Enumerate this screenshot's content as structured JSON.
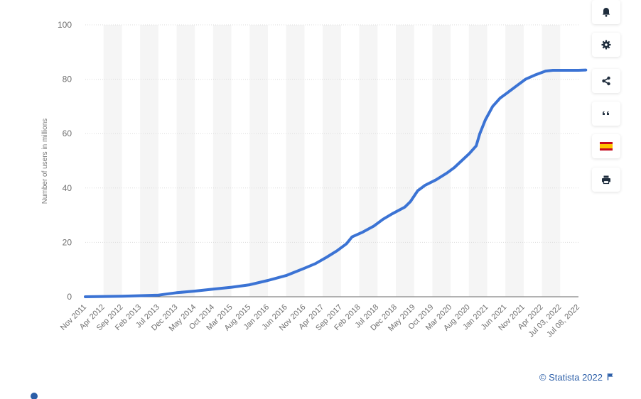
{
  "chart_data": {
    "type": "line",
    "title": "",
    "xlabel": "",
    "ylabel": "Number of users in millions",
    "ylim": [
      0,
      100
    ],
    "yticks": [
      0,
      20,
      40,
      60,
      80,
      100
    ],
    "grid": true,
    "categories": [
      "Nov 2011",
      "Apr 2012",
      "Sep 2012",
      "Feb 2013",
      "Jul 2013",
      "Dec 2013",
      "May 2014",
      "Oct 2014",
      "Mar 2015",
      "Aug 2015",
      "Jan 2016",
      "Jun 2016",
      "Nov 2016",
      "Apr 2017",
      "Sep 2017",
      "Feb 2018",
      "Jul 2018",
      "Dec 2018",
      "May 2019",
      "Oct 2019",
      "Mar 2020",
      "Aug 2020",
      "Jan 2021",
      "Jun 2021",
      "Nov 2021",
      "Apr 2022",
      "Jul 03, 2022",
      "Jul 08, 2022"
    ],
    "series": [
      {
        "name": "",
        "color": "#3b73d4",
        "points": [
          [
            0,
            0
          ],
          [
            1,
            0.1
          ],
          [
            2,
            0.2
          ],
          [
            3,
            0.4
          ],
          [
            4,
            0.6
          ],
          [
            5,
            1.5
          ],
          [
            6,
            2.1
          ],
          [
            7,
            2.8
          ],
          [
            8,
            3.5
          ],
          [
            9,
            4.4
          ],
          [
            10,
            6.0
          ],
          [
            11,
            7.8
          ],
          [
            12,
            10.5
          ],
          [
            12.6,
            12.2
          ],
          [
            13.2,
            14.5
          ],
          [
            13.8,
            17.0
          ],
          [
            14.3,
            19.5
          ],
          [
            14.6,
            22.0
          ],
          [
            15.2,
            23.8
          ],
          [
            15.8,
            26.0
          ],
          [
            16.3,
            28.5
          ],
          [
            16.8,
            30.5
          ],
          [
            17.5,
            33.0
          ],
          [
            17.8,
            35.0
          ],
          [
            18.2,
            39.0
          ],
          [
            18.6,
            41.0
          ],
          [
            19.2,
            43.0
          ],
          [
            19.8,
            45.5
          ],
          [
            20.2,
            47.5
          ],
          [
            20.6,
            50.0
          ],
          [
            21.0,
            52.5
          ],
          [
            21.4,
            55.5
          ],
          [
            21.6,
            60.0
          ],
          [
            21.9,
            65.0
          ],
          [
            22.3,
            70.0
          ],
          [
            22.7,
            73.0
          ],
          [
            23.1,
            75.0
          ],
          [
            23.6,
            77.5
          ],
          [
            24.1,
            80.0
          ],
          [
            24.6,
            81.5
          ],
          [
            25.2,
            83.0
          ],
          [
            25.6,
            83.3
          ],
          [
            26.2,
            83.3
          ],
          [
            27.0,
            83.3
          ],
          [
            27.4,
            83.4
          ]
        ]
      }
    ]
  },
  "toolbar": {
    "buttons": [
      {
        "name": "notification-button",
        "icon": "bell-icon"
      },
      {
        "name": "settings-button",
        "icon": "gear-icon"
      },
      {
        "name": "share-button",
        "icon": "share-icon"
      },
      {
        "name": "cite-button",
        "icon": "quote-icon"
      },
      {
        "name": "language-button",
        "icon": "spain-flag-icon"
      },
      {
        "name": "print-button",
        "icon": "printer-icon"
      }
    ]
  },
  "credit": {
    "text": "© Statista 2022"
  },
  "colors": {
    "accent": "#3b73d4",
    "grid_band": "#f5f5f5",
    "text": "#6e6e6e",
    "link": "#2b5ea8"
  }
}
